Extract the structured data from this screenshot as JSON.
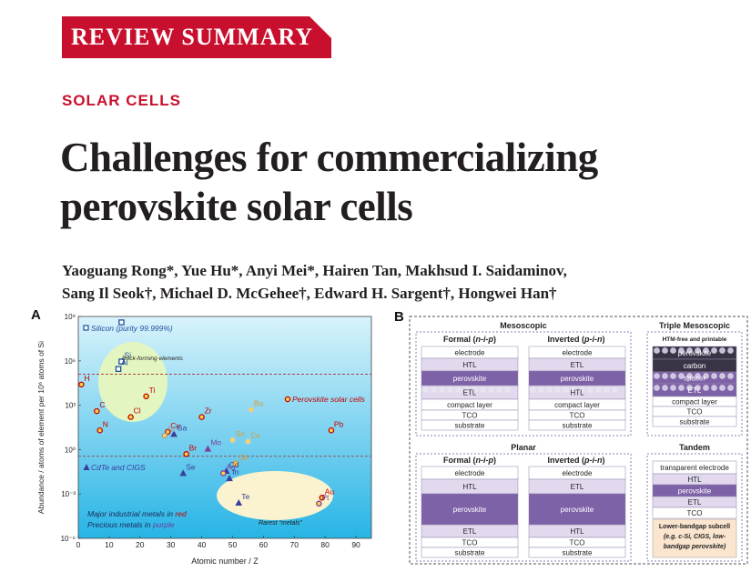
{
  "header": {
    "banner": "REVIEW SUMMARY",
    "topic": "SOLAR CELLS",
    "title_line1": "Challenges for commercializing",
    "title_line2": "perovskite solar cells",
    "authors_line1": "Yaoguang Rong*, Yue Hu*, Anyi Mei*, Hairen Tan, Makhsud I. Saidaminov,",
    "authors_line2": "Sang Il Seok†, Michael D. McGehee†, Edward H. Sargent†, Hongwei Han†"
  },
  "colors": {
    "brand_red": "#c8102e",
    "plot_bg_top": "#d9f3fb",
    "plot_bg_bottom": "#27b4e6",
    "ellipse_green": "#e3f5c0",
    "ellipse_yellow": "#fbf3cf",
    "metal_red": "#c00000",
    "metal_purple": "#6b3fa0",
    "perovskite_purple": "#7e62a8",
    "layer_lilac": "#e2d9ef"
  },
  "figure_a": {
    "label": "A",
    "chart_data": {
      "type": "scatter",
      "xlabel": "Atomic number / Z",
      "ylabel": "Abundance / atoms of element per 10⁶ atoms of Si",
      "xlim": [
        0,
        95
      ],
      "ylog": true,
      "ylim_exp": [
        -6,
        9
      ],
      "x_ticks": [
        0,
        10,
        20,
        30,
        40,
        50,
        60,
        70,
        80,
        90
      ],
      "y_tick_labels": [
        "10⁹",
        "10⁶",
        "10³",
        "10⁰",
        "10⁻³",
        "10⁻⁶"
      ],
      "y_tick_exps": [
        9,
        6,
        3,
        0,
        -3,
        -6
      ],
      "reference_lines_exp": [
        5.1,
        -0.45
      ],
      "annotations": {
        "silicon": "Silicon (purity 99.999%)",
        "rock": "Rock-forming elements",
        "perovskite": "Perovskite solar cells",
        "cdte": "CdTe and CIGS",
        "rarest": "Rarest “metals”",
        "major_metals": "Major industrial metals in",
        "major_metals_color": "red",
        "precious_metals": "Precious metals in",
        "precious_metals_color": "purple"
      },
      "points": [
        {
          "el": "Si",
          "z": 14,
          "e": 5.95,
          "m": "sq",
          "c": "#1f4e9c",
          "l": "#1f4e9c"
        },
        {
          "el": "",
          "z": 14,
          "e": 8.6,
          "m": "sq",
          "c": "#1f4e9c",
          "l": "#1f4e9c"
        },
        {
          "el": "Al",
          "z": 13,
          "e": 5.45,
          "m": "sq",
          "c": "#1f4e9c",
          "l": "#1f4e9c"
        },
        {
          "el": "H",
          "z": 1,
          "e": 4.4,
          "m": "ci",
          "c": "#c00000",
          "l": "#c00000"
        },
        {
          "el": "C",
          "z": 6,
          "e": 2.6,
          "m": "ci",
          "c": "#c00000",
          "l": "#c00000"
        },
        {
          "el": "Ti",
          "z": 22,
          "e": 3.6,
          "m": "ci",
          "c": "#c00000",
          "l": "#c00000"
        },
        {
          "el": "N",
          "z": 7,
          "e": 1.3,
          "m": "ci",
          "c": "#c00000",
          "l": "#c00000"
        },
        {
          "el": "Cl",
          "z": 17,
          "e": 2.2,
          "m": "ci",
          "c": "#c00000",
          "l": "#c00000"
        },
        {
          "el": "Zr",
          "z": 40,
          "e": 2.2,
          "m": "ci",
          "c": "#c00000",
          "l": "#c00000"
        },
        {
          "el": "Ba",
          "z": 56,
          "e": 2.7,
          "m": "ci",
          "c": "#c9c9c9",
          "l": "#d89a3a"
        },
        {
          "el": "Cu",
          "z": 29,
          "e": 1.2,
          "m": "ci",
          "c": "#c00000",
          "l": "#c00000"
        },
        {
          "el": "Ga",
          "z": 31,
          "e": 1.05,
          "m": "tr",
          "c": "#3b3c9c",
          "l": "#3b3c9c"
        },
        {
          "el": "Ni",
          "z": 28,
          "e": 0.95,
          "m": "ci",
          "c": "#9e9e9e",
          "l": "#9e9e9e"
        },
        {
          "el": "Sn",
          "z": 50,
          "e": 0.65,
          "m": "ci",
          "c": "#c9c9c9",
          "l": "#d89a3a"
        },
        {
          "el": "Cs",
          "z": 55,
          "e": 0.55,
          "m": "ci",
          "c": "#c9c9c9",
          "l": "#d89a3a"
        },
        {
          "el": "Pb",
          "z": 82,
          "e": 1.3,
          "m": "ci",
          "c": "#c00000",
          "l": "#c00000"
        },
        {
          "el": "Br",
          "z": 35,
          "e": -0.3,
          "m": "ci",
          "c": "#c00000",
          "l": "#c00000"
        },
        {
          "el": "Mo",
          "z": 42,
          "e": 0.05,
          "m": "tr",
          "c": "#7a3fa0",
          "l": "#7a3fa0"
        },
        {
          "el": "Sb",
          "z": 51,
          "e": -0.95,
          "m": "ci",
          "c": "#d89a3a",
          "l": "#d89a3a"
        },
        {
          "el": "Cd",
          "z": 48,
          "e": -1.45,
          "m": "tr",
          "c": "#3b3c9c",
          "l": "#3b3c9c"
        },
        {
          "el": "Se",
          "z": 34,
          "e": -1.6,
          "m": "tr",
          "c": "#3b3c9c",
          "l": "#3b3c9c"
        },
        {
          "el": "Ag",
          "z": 47,
          "e": -1.6,
          "m": "ci",
          "c": "#7a3fa0",
          "l": "#7a3fa0"
        },
        {
          "el": "In",
          "z": 49,
          "e": -1.95,
          "m": "tr",
          "c": "#3b3c9c",
          "l": "#3b3c9c"
        },
        {
          "el": "Te",
          "z": 52,
          "e": -3.6,
          "m": "tr",
          "c": "#3b3c9c",
          "l": "#3b3c9c"
        },
        {
          "el": "Au",
          "z": 79,
          "e": -3.25,
          "m": "ci",
          "c": "#c00000",
          "l": "#c00000"
        },
        {
          "el": "Pt",
          "z": 78,
          "e": -3.65,
          "m": "ci",
          "c": "#7a3fa0",
          "l": "#7a3fa0"
        }
      ]
    }
  },
  "figure_b": {
    "label": "B",
    "mesoscopic": {
      "title": "Mesoscopic",
      "formal_title": "Formal",
      "formal_sub": "n-i-p",
      "inverted_title": "Inverted",
      "inverted_sub": "p-i-n",
      "formal_layers": [
        "electrode",
        "HTL",
        "perovskite",
        "ETL",
        "compact layer",
        "TCO",
        "substrate"
      ],
      "inverted_layers": [
        "electrode",
        "ETL",
        "perovskite",
        "HTL",
        "compact layer",
        "TCO",
        "substrate"
      ]
    },
    "triple": {
      "title": "Triple Mesoscopic",
      "subtitle": "HTM-free and printable",
      "layers": [
        "perovskite",
        "carbon",
        "spacer",
        "ETL",
        "compact layer",
        "TCO",
        "substrate"
      ]
    },
    "planar": {
      "title": "Planar",
      "formal_title": "Formal",
      "formal_sub": "n-i-p",
      "inverted_title": "Inverted",
      "inverted_sub": "p-i-n",
      "formal_layers": [
        "electrode",
        "HTL",
        "perovskite",
        "ETL",
        "TCO",
        "substrate"
      ],
      "inverted_layers": [
        "electrode",
        "ETL",
        "perovskite",
        "HTL",
        "TCO",
        "substrate"
      ]
    },
    "tandem": {
      "title": "Tandem",
      "layers": [
        "transparent electrode",
        "HTL",
        "perovskite",
        "ETL",
        "TCO"
      ],
      "subcell_line1": "Lower-bandgap subcell",
      "subcell_line2": "(e.g. c-Si, CIGS, low-",
      "subcell_line3": "bandgap perovskite)"
    }
  }
}
